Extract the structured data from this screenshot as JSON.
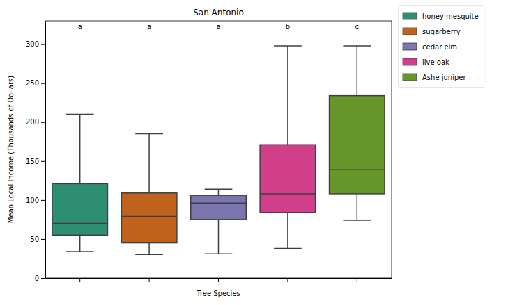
{
  "chart_data": {
    "type": "box",
    "title": "San Antonio",
    "x_label": "Tree Species",
    "y_label": "Mean Local Income (Thousands of Dollars)",
    "ylim": [
      0,
      330
    ],
    "yticks": [
      0,
      50,
      100,
      150,
      200,
      250,
      300
    ],
    "tick_labels": "y",
    "legend": "right",
    "grid": false,
    "series": [
      {
        "name": "honey mesquite",
        "color": "#2d8e71",
        "min": 34,
        "q1": 55,
        "median": 70,
        "q3": 121,
        "max": 210,
        "annotation": "a"
      },
      {
        "name": "sugarberry",
        "color": "#c0621b",
        "min": 30,
        "q1": 45,
        "median": 79,
        "q3": 109,
        "max": 185,
        "annotation": "a"
      },
      {
        "name": "cedar elm",
        "color": "#7b76b0",
        "min": 31,
        "q1": 75,
        "median": 96,
        "q3": 106,
        "max": 114,
        "annotation": "a"
      },
      {
        "name": "live oak",
        "color": "#d13f8b",
        "min": 38,
        "q1": 84,
        "median": 108,
        "q3": 171,
        "max": 298,
        "annotation": "b"
      },
      {
        "name": "Ashe juniper",
        "color": "#66962a",
        "min": 74,
        "q1": 108,
        "median": 139,
        "q3": 234,
        "max": 298,
        "annotation": "c"
      }
    ]
  }
}
